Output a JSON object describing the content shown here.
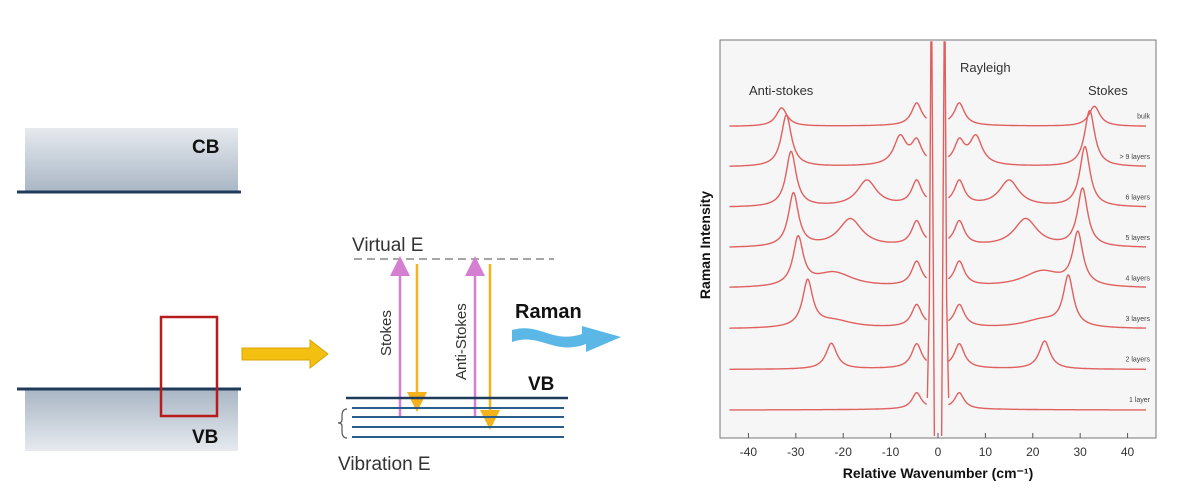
{
  "band_diagram": {
    "cb_label": "CB",
    "vb_label": "VB"
  },
  "energy_diagram": {
    "virtual_label": "Virtual E",
    "stokes_label": "Stokes",
    "anti_stokes_label": "Anti-Stokes",
    "vb_label": "VB",
    "vibration_label": "Vibration E",
    "raman_label": "Raman"
  },
  "colors": {
    "band_line": "#1f3b5c",
    "band_fill_top": "#dfe4ea",
    "band_fill_bottom": "#a8b4c2",
    "highlight_box": "#b71c1c",
    "arrow_yellow": "#f3c012",
    "arrow_stokes": "#d47fd2",
    "arrow_orange": "#f4b21c",
    "raman_arrow": "#5ab7e6",
    "spectrum": "#e06060"
  },
  "chart_data": {
    "type": "line",
    "title": "",
    "xlabel": "Relative Wavenumber (cm⁻¹)",
    "ylabel": "Raman Intensity",
    "xlim": [
      -46,
      46
    ],
    "xticks": [
      -40,
      -30,
      -20,
      -10,
      0,
      10,
      20,
      30,
      40
    ],
    "annotations": {
      "anti_stokes": "Anti-stokes",
      "rayleigh": "Rayleigh",
      "stokes": "Stokes"
    },
    "series": [
      {
        "name": "1 layer",
        "peaks": [
          {
            "x": 4.5,
            "h": 16,
            "w": 1.2
          }
        ]
      },
      {
        "name": "2 layers",
        "peaks": [
          {
            "x": 4.5,
            "h": 24,
            "w": 1.3
          },
          {
            "x": 22.5,
            "h": 28,
            "w": 1.4
          }
        ]
      },
      {
        "name": "3 layers",
        "peaks": [
          {
            "x": 4.5,
            "h": 22,
            "w": 1.3
          },
          {
            "x": 27.5,
            "h": 50,
            "w": 1.3
          },
          {
            "x": 22,
            "h": 8,
            "w": 5
          }
        ]
      },
      {
        "name": "4 layers",
        "peaks": [
          {
            "x": 4.5,
            "h": 24,
            "w": 1.3
          },
          {
            "x": 29.5,
            "h": 52,
            "w": 1.3
          },
          {
            "x": 22,
            "h": 16,
            "w": 5
          }
        ]
      },
      {
        "name": "5 layers",
        "peaks": [
          {
            "x": 4.5,
            "h": 24,
            "w": 1.3
          },
          {
            "x": 30.5,
            "h": 58,
            "w": 1.3
          },
          {
            "x": 18.5,
            "h": 28,
            "w": 3
          }
        ]
      },
      {
        "name": "6 layers",
        "peaks": [
          {
            "x": 4.5,
            "h": 24,
            "w": 1.3
          },
          {
            "x": 31,
            "h": 60,
            "w": 1.3
          },
          {
            "x": 15,
            "h": 26,
            "w": 2.5
          }
        ]
      },
      {
        "name": "> 9 layers",
        "peaks": [
          {
            "x": 4.5,
            "h": 22,
            "w": 1.3
          },
          {
            "x": 32,
            "h": 56,
            "w": 1.3
          },
          {
            "x": 8,
            "h": 28,
            "w": 1.6
          }
        ]
      },
      {
        "name": "bulk",
        "peaks": [
          {
            "x": 4.5,
            "h": 22,
            "w": 1.3
          },
          {
            "x": 33,
            "h": 20,
            "w": 1.4
          }
        ]
      }
    ]
  }
}
